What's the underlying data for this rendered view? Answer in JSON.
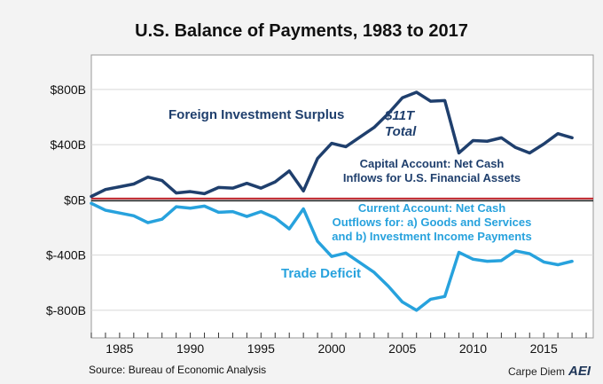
{
  "chart_data": {
    "type": "line",
    "title": "U.S. Balance of Payments, 1983 to 2017",
    "xlabel": "",
    "ylabel": "",
    "xlim": [
      1983,
      2018.5
    ],
    "ylim": [
      -1000,
      1050
    ],
    "x_ticks": [
      "1985",
      "1990",
      "1995",
      "2000",
      "2005",
      "2010",
      "2015"
    ],
    "y_ticks": [
      "$800B",
      "$400B",
      "$0B",
      "$-400B",
      "$-800B"
    ],
    "years": [
      1983,
      1984,
      1985,
      1986,
      1987,
      1988,
      1989,
      1990,
      1991,
      1992,
      1993,
      1994,
      1995,
      1996,
      1997,
      1998,
      1999,
      2000,
      2001,
      2002,
      2003,
      2004,
      2005,
      2006,
      2007,
      2008,
      2009,
      2010,
      2011,
      2012,
      2013,
      2014,
      2015,
      2016,
      2017
    ],
    "series": [
      {
        "color": "#1f3f6d",
        "values": [
          25,
          75,
          95,
          115,
          165,
          140,
          50,
          60,
          45,
          90,
          85,
          120,
          85,
          130,
          210,
          65,
          300,
          410,
          385,
          455,
          525,
          625,
          740,
          780,
          715,
          720,
          340,
          430,
          425,
          450,
          380,
          340,
          405,
          480,
          450
        ]
      },
      {
        "color": "#27a2dd",
        "values": [
          -25,
          -75,
          -95,
          -115,
          -165,
          -140,
          -50,
          -60,
          -45,
          -90,
          -85,
          -120,
          -85,
          -130,
          -210,
          -65,
          -300,
          -410,
          -385,
          -455,
          -525,
          -625,
          -740,
          -800,
          -720,
          -700,
          -380,
          -430,
          -445,
          -440,
          -370,
          -390,
          -450,
          -470,
          -445
        ]
      }
    ],
    "annotations": {
      "surplus_label": "Foreign Investment Surplus",
      "total_line1": "$11T",
      "total_line2": "Total",
      "capital_line1": "Capital Account: Net Cash",
      "capital_line2": "Inflows for U.S. Financial Assets",
      "current_line1": "Current Account: Net Cash",
      "current_line2": "Outflows for: a) Goods and Services",
      "current_line3": "and b) Investment Income Payments",
      "deficit_label": "Trade Deficit"
    },
    "zero_line_color": "#c0262d",
    "grid": "horizontal"
  },
  "footer": {
    "source": "Source: Bureau of Economic Analysis",
    "credit": "Carpe Diem",
    "logo": "AEI"
  }
}
